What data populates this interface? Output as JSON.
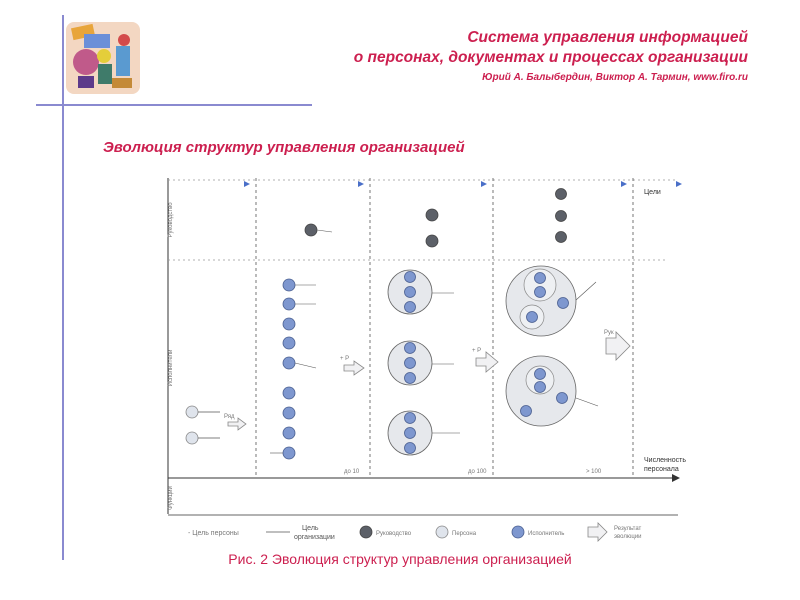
{
  "header": {
    "title_line1": "Система управления информацией",
    "title_line2": "о персонах, документах и процессах организации",
    "authors": "Юрий А. Балыбердин, Виктор А. Тармин, www.firo.ru"
  },
  "slide": {
    "heading": "Эволюция структур управления организацией"
  },
  "diagram": {
    "y_axis_labels": [
      "Руководство",
      "Исполнители",
      "Функции"
    ],
    "x_axis_label_line1": "Численность",
    "x_axis_label_line2": "персонала",
    "top_axis_label": "Цели",
    "stage_labels": [
      "до 10",
      "до 100",
      "> 100"
    ],
    "transition_labels": [
      "Ряд",
      "+ Р",
      "+ Р",
      "Рук"
    ],
    "legend": {
      "person_goal": "- Цель персоны",
      "org_goal_line1": "Цель",
      "org_goal_line2": "организации",
      "manager": "Руководство",
      "person": "Персона",
      "executor": "Исполнитель",
      "growth_line1": "Результат",
      "growth_line2": "эволюции"
    },
    "colors": {
      "executor": "#7e97cf",
      "manager": "#5c6068",
      "person": "#dfe4ec",
      "group": "#e6e8ec",
      "arrow": "#f1f1f3"
    }
  },
  "caption": "Рис. 2 Эволюция структур управления организацией"
}
